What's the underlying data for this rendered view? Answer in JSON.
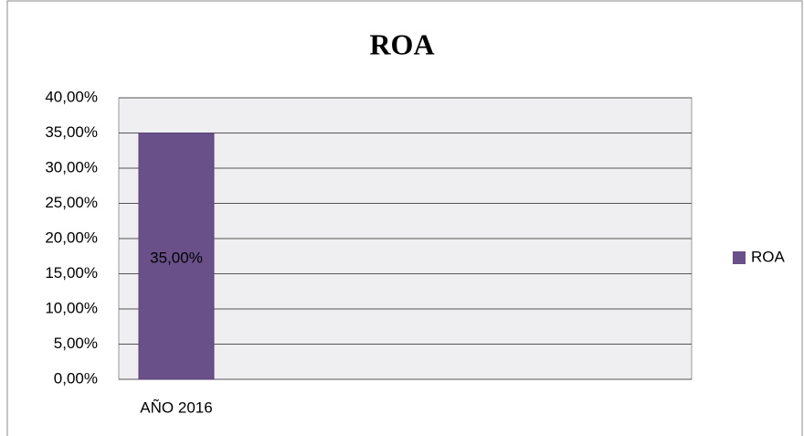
{
  "chart_data": {
    "type": "bar",
    "title": "ROA",
    "categories": [
      "AÑO 2016"
    ],
    "series": [
      {
        "name": "ROA",
        "color": "#6a5088",
        "values": [
          35
        ],
        "value_labels": [
          "35,00%"
        ]
      }
    ],
    "ylim": [
      0,
      40
    ],
    "yticks": [
      {
        "value": 0,
        "label": "0,00%"
      },
      {
        "value": 5,
        "label": "5,00%"
      },
      {
        "value": 10,
        "label": "10,00%"
      },
      {
        "value": 15,
        "label": "15,00%"
      },
      {
        "value": 20,
        "label": "20,00%"
      },
      {
        "value": 25,
        "label": "25,00%"
      },
      {
        "value": 30,
        "label": "30,00%"
      },
      {
        "value": 35,
        "label": "35,00%"
      },
      {
        "value": 40,
        "label": "40,00%"
      }
    ],
    "grid": true,
    "legend": "right"
  }
}
